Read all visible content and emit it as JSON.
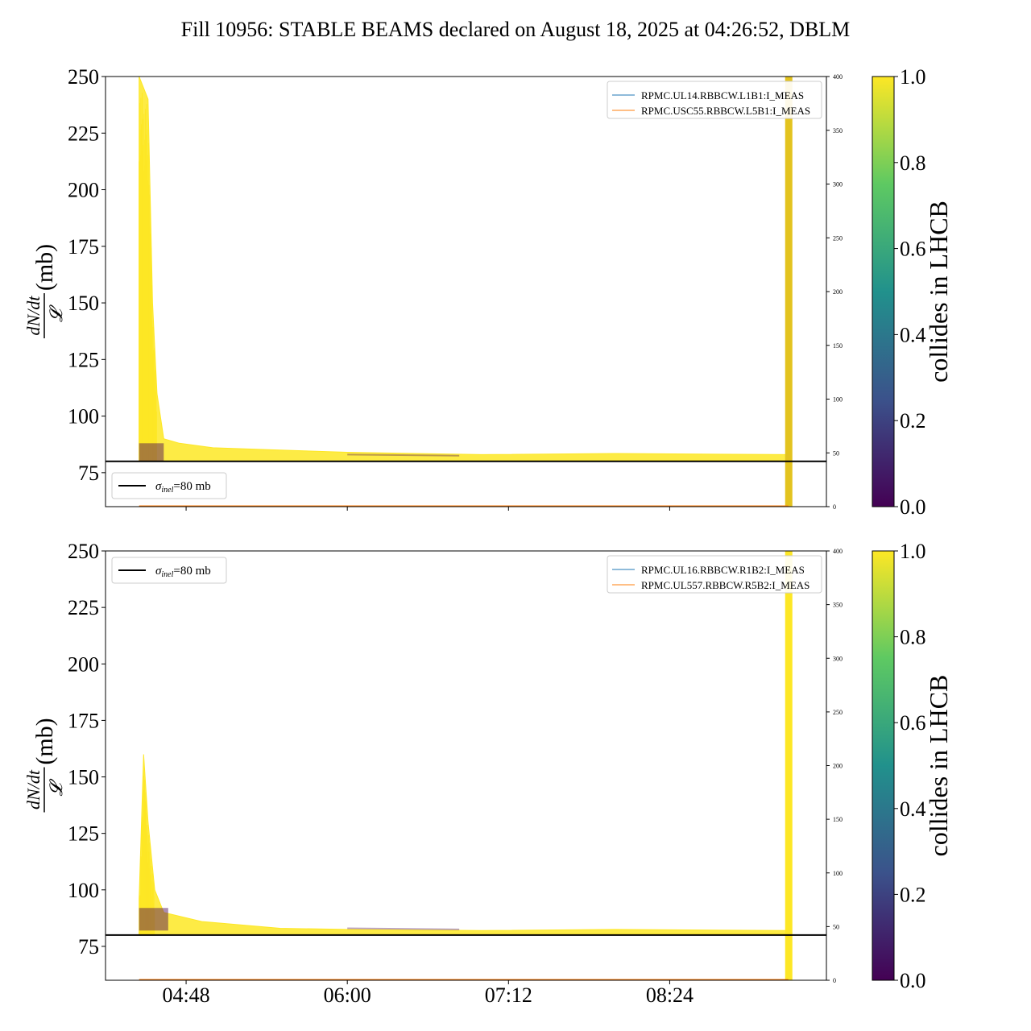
{
  "title": "Fill 10956: STABLE BEAMS declared on August 18, 2025 at 04:26:52, DBLM",
  "colors": {
    "yellow": "#fde725",
    "dark": "#440154",
    "blue_line": "#1f77b4",
    "orange_line": "#ff7f0e",
    "black": "#000000"
  },
  "colorbar": {
    "label": "collides in LHCB",
    "ticks": [
      "0.0",
      "0.2",
      "0.4",
      "0.6",
      "0.8",
      "1.0"
    ],
    "colormap": [
      "#440154",
      "#3b528b",
      "#21918c",
      "#5ec962",
      "#fde725"
    ]
  },
  "chart_data": [
    {
      "type": "line",
      "panel": "top",
      "ylabel_fraction_num": "dN/dt",
      "ylabel_fraction_den": "𝓛",
      "ylabel_unit": "(mb)",
      "ylim": [
        60,
        250
      ],
      "yticks": [
        "75",
        "100",
        "125",
        "150",
        "175",
        "200",
        "225",
        "250"
      ],
      "y2lim": [
        0,
        400
      ],
      "y2ticks": [
        "0",
        "50",
        "100",
        "150",
        "200",
        "250",
        "300",
        "350",
        "400"
      ],
      "xticks": [
        "04:48",
        "06:00",
        "07:12",
        "08:24"
      ],
      "xlim": [
        "04:12",
        "09:34"
      ],
      "reference_line": {
        "value": 80,
        "label": "σinel=80 mb",
        "label_symbol": "σ",
        "label_sub": "inel",
        "label_rest": "=80 mb"
      },
      "legend": [
        "RPMC.UL14.RBBCW.L1B1:I_MEAS",
        "RPMC.USC55.RBBCW.L5B1:I_MEAS"
      ],
      "envelope_upper": [
        {
          "x": "04:27",
          "y": 250
        },
        {
          "x": "04:31",
          "y": 240
        },
        {
          "x": "04:33",
          "y": 150
        },
        {
          "x": "04:35",
          "y": 110
        },
        {
          "x": "04:38",
          "y": 90
        },
        {
          "x": "04:45",
          "y": 88
        },
        {
          "x": "05:00",
          "y": 86
        },
        {
          "x": "05:30",
          "y": 85
        },
        {
          "x": "06:00",
          "y": 84
        },
        {
          "x": "07:00",
          "y": 83
        },
        {
          "x": "08:00",
          "y": 83.5
        },
        {
          "x": "09:17",
          "y": 83
        }
      ],
      "envelope_lower": [
        {
          "x": "04:27",
          "y": 80
        },
        {
          "x": "09:17",
          "y": 80.5
        }
      ],
      "dark_band": {
        "x_start": "04:27",
        "x_end": "04:38",
        "y_low": 80,
        "y_high": 88
      },
      "final_spike_x": "09:17"
    },
    {
      "type": "line",
      "panel": "bottom",
      "ylabel_fraction_num": "dN/dt",
      "ylabel_fraction_den": "𝓛",
      "ylabel_unit": "(mb)",
      "ylim": [
        60,
        250
      ],
      "yticks": [
        "75",
        "100",
        "125",
        "150",
        "175",
        "200",
        "225",
        "250"
      ],
      "y2lim": [
        0,
        400
      ],
      "y2ticks": [
        "0",
        "50",
        "100",
        "150",
        "200",
        "250",
        "300",
        "350",
        "400"
      ],
      "xticks": [
        "04:48",
        "06:00",
        "07:12",
        "08:24"
      ],
      "xlim": [
        "04:12",
        "09:34"
      ],
      "reference_line": {
        "value": 80,
        "label": "σinel=80 mb",
        "label_symbol": "σ",
        "label_sub": "inel",
        "label_rest": "=80 mb"
      },
      "legend": [
        "RPMC.UL16.RBBCW.R1B2:I_MEAS",
        "RPMC.UL557.RBBCW.R5B2:I_MEAS"
      ],
      "envelope_upper": [
        {
          "x": "04:27",
          "y": 96
        },
        {
          "x": "04:29",
          "y": 160
        },
        {
          "x": "04:31",
          "y": 130
        },
        {
          "x": "04:34",
          "y": 100
        },
        {
          "x": "04:38",
          "y": 90
        },
        {
          "x": "04:55",
          "y": 86
        },
        {
          "x": "05:30",
          "y": 83
        },
        {
          "x": "06:00",
          "y": 82.5
        },
        {
          "x": "07:00",
          "y": 82
        },
        {
          "x": "08:00",
          "y": 82.5
        },
        {
          "x": "09:17",
          "y": 82
        }
      ],
      "envelope_lower": [
        {
          "x": "04:27",
          "y": 80
        },
        {
          "x": "09:17",
          "y": 80.5
        }
      ],
      "dark_band": {
        "x_start": "04:27",
        "x_end": "04:40",
        "y_low": 82,
        "y_high": 92
      },
      "final_spike_x": "09:17"
    }
  ]
}
